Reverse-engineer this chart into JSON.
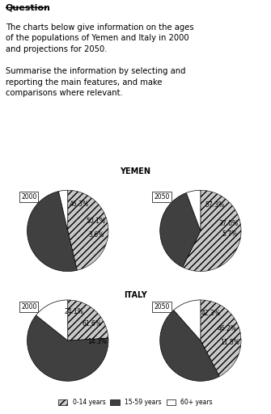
{
  "title_question": "Question",
  "yemen_2000": {
    "0-14": 46.3,
    "15-59": 50.1,
    "60+": 3.6
  },
  "yemen_2050": {
    "0-14": 57.3,
    "15-59": 37.0,
    "60+": 5.7
  },
  "italy_2000": {
    "0-14": 24.1,
    "15-59": 61.6,
    "60+": 14.3
  },
  "italy_2050": {
    "0-14": 42.3,
    "15-59": 46.2,
    "60+": 11.5
  },
  "colors": {
    "0-14": "#c8c8c8",
    "15-59": "#404040",
    "60+": "#ffffff"
  },
  "hatch_014": "////",
  "legend_labels": [
    "0-14 years",
    "15-59 years",
    "60+ years"
  ],
  "yemen_title": "YEMEN",
  "italy_title": "ITALY"
}
